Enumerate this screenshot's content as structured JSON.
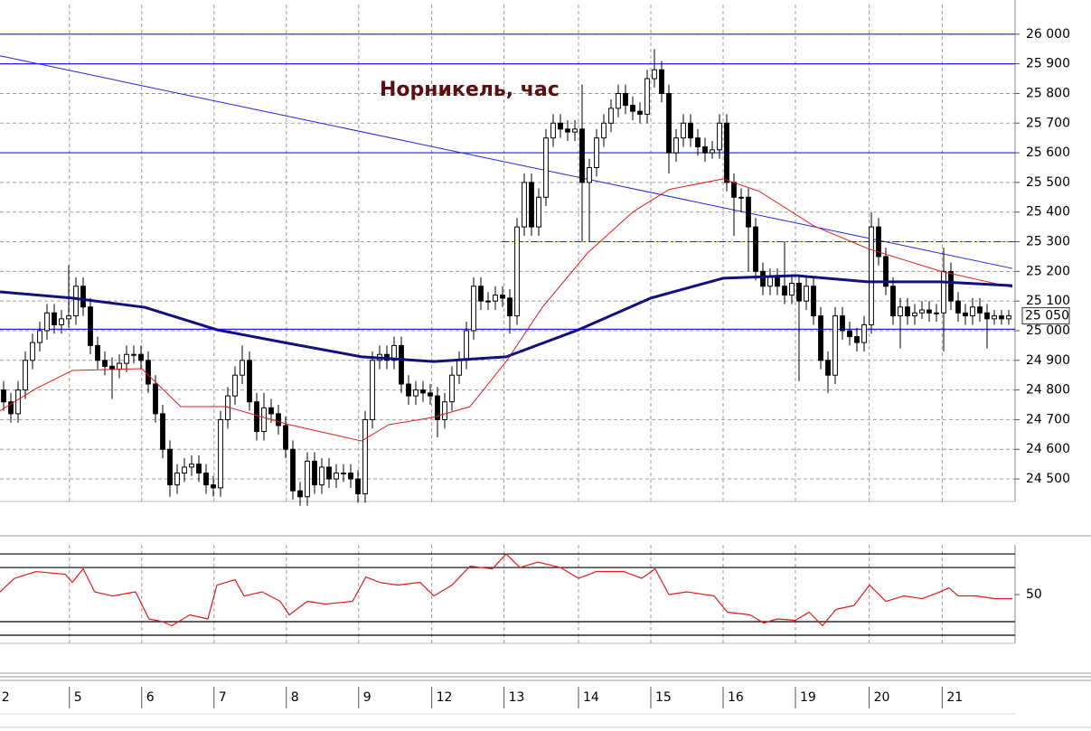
{
  "chart_data": [
    {
      "type": "candlestick",
      "title": "Норникель, час",
      "xlim": [
        0,
        140
      ],
      "xticks": [
        {
          "value": -0.4,
          "label": "2"
        },
        {
          "value": 9.6,
          "label": "5"
        },
        {
          "value": 19.6,
          "label": "6"
        },
        {
          "value": 29.6,
          "label": "7"
        },
        {
          "value": 39.6,
          "label": "8"
        },
        {
          "value": 49.6,
          "label": "9"
        },
        {
          "value": 59.7,
          "label": "12"
        },
        {
          "value": 69.7,
          "label": "13"
        },
        {
          "value": 80,
          "label": "14"
        },
        {
          "value": 90,
          "label": "15"
        },
        {
          "value": 100,
          "label": "16"
        },
        {
          "value": 110,
          "label": "19"
        },
        {
          "value": 120.2,
          "label": "20"
        },
        {
          "value": 130.3,
          "label": "21"
        }
      ],
      "ylim": [
        24424,
        26100
      ],
      "yticks": [
        {
          "value": 24500,
          "label": "24 500"
        },
        {
          "value": 24600,
          "label": "24 600"
        },
        {
          "value": 24700,
          "label": "24 700"
        },
        {
          "value": 24800,
          "label": "24 800"
        },
        {
          "value": 24900,
          "label": "24 900"
        },
        {
          "value": 25000,
          "label": "25 000"
        },
        {
          "value": 25100,
          "label": "25 100"
        },
        {
          "value": 25200,
          "label": "25 200"
        },
        {
          "value": 25300,
          "label": "25 300"
        },
        {
          "value": 25400,
          "label": "25 400"
        },
        {
          "value": 25500,
          "label": "25 500"
        },
        {
          "value": 25600,
          "label": "25 600"
        },
        {
          "value": 25700,
          "label": "25 700"
        },
        {
          "value": 25800,
          "label": "25 800"
        },
        {
          "value": 25900,
          "label": "25 900"
        },
        {
          "value": 26000,
          "label": "26 000"
        }
      ],
      "grid": true,
      "level_color": "#2323e6",
      "levels": [
        26000,
        25900,
        25600,
        25005
      ],
      "dashed_level": {
        "value": 25300,
        "from": 69.4
      },
      "trend_line": {
        "x": [
          0,
          140
        ],
        "values": [
          25927,
          25210
        ]
      },
      "last_price": {
        "value": 25050,
        "label": "25 050"
      },
      "candles": {
        "open": [
          24800,
          24760,
          24720,
          24800,
          24900,
          24960,
          25000,
          25060,
          25020,
          25040,
          25050,
          25150,
          25080,
          24950,
          24900,
          24880,
          24870,
          24890,
          24920,
          24920,
          24900,
          24820,
          24720,
          24600,
          24480,
          24520,
          24540,
          24550,
          24520,
          24480,
          24470,
          24700,
          24780,
          24850,
          24900,
          24760,
          24660,
          24740,
          24720,
          24680,
          24600,
          24460,
          24440,
          24560,
          24480,
          24540,
          24500,
          24520,
          24520,
          24500,
          24450,
          24700,
          24900,
          24920,
          24900,
          24950,
          24820,
          24780,
          24800,
          24790,
          24780,
          24700,
          24760,
          24850,
          24900,
          25000,
          25150,
          25100,
          25100,
          25120,
          25110,
          25050,
          25350,
          25500,
          25350,
          25450,
          25650,
          25700,
          25680,
          25670,
          25680,
          25500,
          25550,
          25650,
          25700,
          25750,
          25800,
          25760,
          25740,
          25730,
          25850,
          25880,
          25800,
          25600,
          25650,
          25700,
          25650,
          25620,
          25600,
          25610,
          25700,
          25500,
          25450,
          25450,
          25350,
          25200,
          25150,
          25180,
          25150,
          25120,
          25160,
          25100,
          25150,
          25050,
          24900,
          24850,
          25050,
          25000,
          24980,
          24960,
          25020,
          25350,
          25250,
          25150,
          25050,
          25080,
          25050,
          25060,
          25070,
          25060,
          25060,
          25200,
          25100,
          25060,
          25050,
          25080,
          25060,
          25040,
          25050,
          25040
        ],
        "high": [
          24830,
          24790,
          24830,
          24930,
          24990,
          25030,
          25090,
          25090,
          25070,
          25220,
          25180,
          25180,
          25110,
          24980,
          24930,
          24910,
          24920,
          24950,
          24950,
          24950,
          24930,
          24850,
          24750,
          24630,
          24550,
          24570,
          24580,
          24580,
          24550,
          24510,
          24730,
          24810,
          24880,
          24950,
          24930,
          24790,
          24790,
          24770,
          24750,
          24710,
          24630,
          24490,
          24590,
          24590,
          24570,
          24570,
          24550,
          24550,
          24550,
          24530,
          24730,
          24930,
          24950,
          24950,
          24980,
          24980,
          24850,
          24830,
          24830,
          24820,
          24810,
          24790,
          24880,
          24930,
          25030,
          25180,
          25180,
          25130,
          25150,
          25150,
          25140,
          25380,
          25530,
          25530,
          25480,
          25680,
          25730,
          25730,
          25710,
          25710,
          25830,
          25580,
          25680,
          25730,
          25780,
          25830,
          25830,
          25790,
          25770,
          25880,
          25950,
          25910,
          25830,
          25680,
          25730,
          25730,
          25680,
          25650,
          25640,
          25730,
          25730,
          25530,
          25480,
          25480,
          25380,
          25230,
          25210,
          25210,
          25300,
          25190,
          25190,
          25180,
          25180,
          25080,
          24930,
          25080,
          25080,
          25030,
          25010,
          25050,
          25400,
          25380,
          25280,
          25180,
          25110,
          25110,
          25090,
          25100,
          25100,
          25090,
          25280,
          25230,
          25130,
          25090,
          25110,
          25110,
          25090,
          25070,
          25070,
          25070
        ],
        "low": [
          24730,
          24690,
          24690,
          24770,
          24870,
          24930,
          24970,
          24990,
          24990,
          25010,
          25020,
          25050,
          24920,
          24870,
          24850,
          24770,
          24840,
          24860,
          24890,
          24870,
          24790,
          24690,
          24570,
          24440,
          24450,
          24490,
          24510,
          24490,
          24450,
          24440,
          24440,
          24670,
          24750,
          24820,
          24730,
          24630,
          24630,
          24690,
          24650,
          24570,
          24430,
          24410,
          24410,
          24450,
          24450,
          24470,
          24470,
          24490,
          24470,
          24420,
          24420,
          24670,
          24870,
          24870,
          24870,
          24790,
          24750,
          24750,
          24760,
          24750,
          24640,
          24670,
          24730,
          24820,
          24870,
          24970,
          25070,
          25070,
          25070,
          25080,
          24990,
          25020,
          25320,
          25320,
          25320,
          25420,
          25620,
          25650,
          25640,
          25640,
          25300,
          25300,
          25520,
          25620,
          25670,
          25720,
          25730,
          25710,
          25700,
          25700,
          25820,
          25770,
          25530,
          25570,
          25620,
          25620,
          25590,
          25570,
          25580,
          25580,
          25470,
          25320,
          25400,
          25200,
          25170,
          25120,
          25120,
          25120,
          25090,
          25090,
          24830,
          25070,
          25020,
          24870,
          24790,
          24820,
          24970,
          24950,
          24930,
          24930,
          24990,
          25220,
          25120,
          25020,
          24940,
          25020,
          25020,
          25040,
          25030,
          25030,
          24930,
          25070,
          25030,
          25020,
          25020,
          25030,
          24940,
          25020,
          25020,
          25020
        ],
        "close": [
          24760,
          24720,
          24800,
          24900,
          24960,
          25000,
          25060,
          25020,
          25040,
          25050,
          25150,
          25080,
          24950,
          24900,
          24880,
          24870,
          24890,
          24920,
          24920,
          24900,
          24820,
          24720,
          24600,
          24480,
          24520,
          24540,
          24550,
          24520,
          24480,
          24470,
          24700,
          24780,
          24850,
          24900,
          24760,
          24660,
          24740,
          24720,
          24680,
          24600,
          24460,
          24440,
          24560,
          24480,
          24540,
          24500,
          24520,
          24520,
          24500,
          24450,
          24700,
          24900,
          24920,
          24900,
          24950,
          24820,
          24780,
          24800,
          24790,
          24780,
          24700,
          24760,
          24850,
          24900,
          25000,
          25150,
          25100,
          25100,
          25120,
          25110,
          25050,
          25350,
          25500,
          25350,
          25450,
          25650,
          25700,
          25680,
          25670,
          25680,
          25500,
          25550,
          25650,
          25700,
          25750,
          25800,
          25760,
          25740,
          25730,
          25850,
          25880,
          25800,
          25600,
          25650,
          25700,
          25650,
          25620,
          25600,
          25610,
          25700,
          25500,
          25450,
          25450,
          25350,
          25200,
          25150,
          25180,
          25150,
          25120,
          25160,
          25100,
          25150,
          25050,
          24900,
          24850,
          25050,
          25000,
          24980,
          24960,
          25020,
          25350,
          25250,
          25150,
          25050,
          25080,
          25050,
          25060,
          25070,
          25060,
          25060,
          25200,
          25100,
          25060,
          25050,
          25080,
          25060,
          25040,
          25050,
          25040,
          25050
        ]
      },
      "series": [
        {
          "color": "#e31a1a",
          "width": 1,
          "x": [
            0,
            5,
            10,
            19.6,
            25,
            31.25,
            40,
            50,
            53.75,
            59.75,
            65,
            70,
            75,
            81.25,
            87.5,
            92.5,
            100,
            105,
            112.5,
            120,
            130,
            140
          ],
          "values": [
            24730,
            24805,
            24866,
            24872,
            24744,
            24744,
            24683,
            24628,
            24683,
            24707,
            24744,
            24896,
            25079,
            25262,
            25400,
            25476,
            25512,
            25470,
            25354,
            25277,
            25201,
            25146
          ]
        },
        {
          "color": "#101080",
          "width": 3,
          "x": [
            0,
            10,
            20,
            30,
            40,
            50,
            60,
            70,
            80,
            90,
            100,
            110,
            120,
            130,
            140
          ],
          "values": [
            25131,
            25110,
            25079,
            25003,
            24957,
            24912,
            24896,
            24912,
            25003,
            25110,
            25177,
            25186,
            25165,
            25165,
            25152
          ]
        }
      ]
    },
    {
      "type": "line",
      "xlim": [
        0,
        140
      ],
      "ylim": [
        14,
        86.7
      ],
      "yticks": [
        50
      ],
      "levels": [
        80,
        70,
        30,
        20
      ],
      "series": [
        {
          "color": "#e31a1a",
          "x": [
            0,
            2,
            5,
            9,
            10,
            11.5,
            13.1,
            15.6,
            18.75,
            20.6,
            22.5,
            23.75,
            26.25,
            28.75,
            30,
            32.5,
            33.75,
            36.25,
            38.75,
            40,
            42.5,
            45,
            48.75,
            50.6,
            52.5,
            55,
            58.1,
            60,
            62.5,
            65,
            68.1,
            70,
            71.9,
            74.4,
            77.5,
            80,
            82.5,
            86.25,
            88.75,
            90.6,
            92.5,
            95,
            98.75,
            100.6,
            103.75,
            105.6,
            107.5,
            110,
            111.9,
            113.75,
            115.6,
            118.1,
            120.25,
            122.5,
            125,
            127.5,
            130,
            131.25,
            132.5,
            135,
            137.5,
            140
          ],
          "values": [
            52,
            62,
            67,
            65,
            59,
            69,
            52,
            49,
            52,
            32,
            30,
            27,
            35,
            32,
            57,
            61,
            49,
            52,
            45,
            35,
            45,
            43,
            45,
            63,
            59,
            57,
            59,
            49,
            57,
            71,
            69,
            80,
            70,
            74,
            70,
            62,
            67,
            67,
            62,
            69,
            50,
            52,
            49,
            37,
            35,
            29,
            32,
            31,
            37,
            27,
            39,
            42,
            57,
            45,
            49,
            47,
            52,
            55,
            49,
            49,
            47,
            47
          ]
        }
      ]
    }
  ]
}
